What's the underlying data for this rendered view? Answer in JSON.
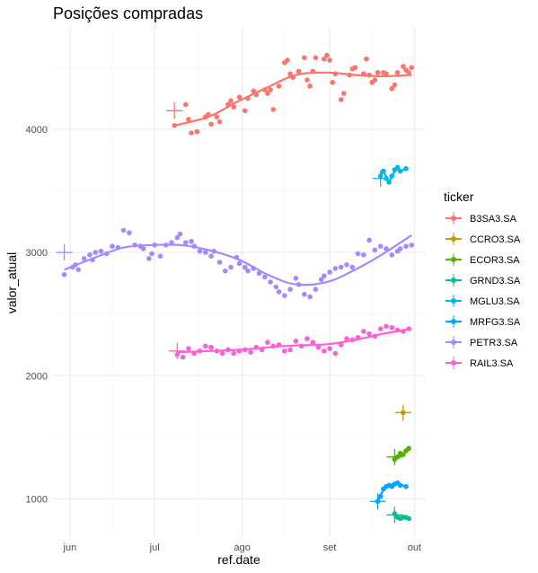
{
  "chart_data": {
    "type": "scatter",
    "title": "Posições compradas",
    "xlabel": "ref.date",
    "ylabel": "valor_atual",
    "x_ticks": [
      {
        "date": "2021-06-01",
        "label": "jun"
      },
      {
        "date": "2021-07-01",
        "label": "jul"
      },
      {
        "date": "2021-08-01",
        "label": "ago"
      },
      {
        "date": "2021-09-01",
        "label": "set"
      },
      {
        "date": "2021-10-01",
        "label": "out"
      }
    ],
    "y_ticks": [
      1000,
      2000,
      3000,
      4000
    ],
    "xlim": [
      "2021-05-26",
      "2021-10-05"
    ],
    "ylim": [
      690,
      4830
    ],
    "grid": true,
    "legend": {
      "title": "ticker",
      "placement": "right"
    },
    "series": [
      {
        "name": "B3SA3.SA",
        "color": "#F8766D",
        "entry": {
          "date": "2021-07-08",
          "value": 4150
        },
        "points": [
          [
            "2021-07-08",
            4030
          ],
          [
            "2021-07-12",
            4200
          ],
          [
            "2021-07-13",
            4080
          ],
          [
            "2021-07-14",
            3970
          ],
          [
            "2021-07-16",
            3980
          ],
          [
            "2021-07-19",
            4100
          ],
          [
            "2021-07-20",
            4120
          ],
          [
            "2021-07-21",
            4040
          ],
          [
            "2021-07-23",
            4100
          ],
          [
            "2021-07-24",
            4060
          ],
          [
            "2021-07-27",
            4200
          ],
          [
            "2021-07-28",
            4230
          ],
          [
            "2021-07-29",
            4180
          ],
          [
            "2021-07-31",
            4260
          ],
          [
            "2021-08-02",
            4150
          ],
          [
            "2021-08-03",
            4250
          ],
          [
            "2021-08-05",
            4310
          ],
          [
            "2021-08-06",
            4280
          ],
          [
            "2021-08-09",
            4320
          ],
          [
            "2021-08-10",
            4290
          ],
          [
            "2021-08-11",
            4320
          ],
          [
            "2021-08-12",
            4160
          ],
          [
            "2021-08-14",
            4350
          ],
          [
            "2021-08-16",
            4540
          ],
          [
            "2021-08-17",
            4560
          ],
          [
            "2021-08-18",
            4450
          ],
          [
            "2021-08-19",
            4420
          ],
          [
            "2021-08-21",
            4470
          ],
          [
            "2021-08-23",
            4580
          ],
          [
            "2021-08-24",
            4400
          ],
          [
            "2021-08-25",
            4350
          ],
          [
            "2021-08-26",
            4470
          ],
          [
            "2021-08-27",
            4580
          ],
          [
            "2021-08-30",
            4570
          ],
          [
            "2021-08-31",
            4600
          ],
          [
            "2021-09-01",
            4560
          ],
          [
            "2021-09-02",
            4380
          ],
          [
            "2021-09-03",
            4450
          ],
          [
            "2021-09-05",
            4240
          ],
          [
            "2021-09-06",
            4290
          ],
          [
            "2021-09-08",
            4440
          ],
          [
            "2021-09-09",
            4490
          ],
          [
            "2021-09-10",
            4500
          ],
          [
            "2021-09-13",
            4450
          ],
          [
            "2021-09-14",
            4570
          ],
          [
            "2021-09-15",
            4440
          ],
          [
            "2021-09-16",
            4380
          ],
          [
            "2021-09-17",
            4400
          ],
          [
            "2021-09-18",
            4460
          ],
          [
            "2021-09-20",
            4460
          ],
          [
            "2021-09-21",
            4450
          ],
          [
            "2021-09-23",
            4330
          ],
          [
            "2021-09-24",
            4360
          ],
          [
            "2021-09-25",
            4460
          ],
          [
            "2021-09-27",
            4510
          ],
          [
            "2021-09-28",
            4480
          ],
          [
            "2021-09-29",
            4460
          ],
          [
            "2021-09-30",
            4500
          ]
        ],
        "trend": [
          [
            "2021-07-08",
            4030
          ],
          [
            "2021-07-20",
            4100
          ],
          [
            "2021-07-30",
            4220
          ],
          [
            "2021-08-10",
            4340
          ],
          [
            "2021-08-20",
            4440
          ],
          [
            "2021-08-31",
            4460
          ],
          [
            "2021-09-10",
            4440
          ],
          [
            "2021-09-20",
            4430
          ],
          [
            "2021-09-30",
            4440
          ]
        ]
      },
      {
        "name": "CCRO3.SA",
        "color": "#C49A00",
        "entry": {
          "date": "2021-09-27",
          "value": 1700
        },
        "points": [
          [
            "2021-09-27",
            1700
          ]
        ],
        "trend": []
      },
      {
        "name": "ECOR3.SA",
        "color": "#53B400",
        "entry": {
          "date": "2021-09-24",
          "value": 1340
        },
        "points": [
          [
            "2021-09-24",
            1320
          ],
          [
            "2021-09-25",
            1340
          ],
          [
            "2021-09-26",
            1370
          ],
          [
            "2021-09-27",
            1360
          ],
          [
            "2021-09-28",
            1390
          ],
          [
            "2021-09-29",
            1410
          ]
        ],
        "trend": [
          [
            "2021-09-24",
            1320
          ],
          [
            "2021-09-26",
            1350
          ],
          [
            "2021-09-29",
            1400
          ]
        ]
      },
      {
        "name": "GRND3.SA",
        "color": "#00C094",
        "entry": {
          "date": "2021-09-24",
          "value": 870
        },
        "points": [
          [
            "2021-09-24",
            880
          ],
          [
            "2021-09-25",
            850
          ],
          [
            "2021-09-26",
            840
          ],
          [
            "2021-09-27",
            850
          ],
          [
            "2021-09-28",
            850
          ],
          [
            "2021-09-29",
            840
          ]
        ],
        "trend": [
          [
            "2021-09-24",
            870
          ],
          [
            "2021-09-26",
            850
          ],
          [
            "2021-09-29",
            845
          ]
        ]
      },
      {
        "name": "MGLU3.SA",
        "color": "#00B6EB",
        "entry": {
          "date": "2021-09-19",
          "value": 3600
        },
        "points": [
          [
            "2021-09-19",
            3620
          ],
          [
            "2021-09-20",
            3660
          ],
          [
            "2021-09-21",
            3600
          ],
          [
            "2021-09-22",
            3570
          ],
          [
            "2021-09-23",
            3620
          ],
          [
            "2021-09-24",
            3670
          ],
          [
            "2021-09-25",
            3690
          ],
          [
            "2021-09-26",
            3660
          ],
          [
            "2021-09-28",
            3680
          ]
        ],
        "trend": [
          [
            "2021-09-19",
            3610
          ],
          [
            "2021-09-20",
            3650
          ],
          [
            "2021-09-22",
            3580
          ],
          [
            "2021-09-23",
            3620
          ],
          [
            "2021-09-25",
            3680
          ],
          [
            "2021-09-26",
            3660
          ],
          [
            "2021-09-28",
            3680
          ]
        ]
      },
      {
        "name": "MRFG3.SA",
        "color": "#06A4FF",
        "entry": {
          "date": "2021-09-18",
          "value": 980
        },
        "points": [
          [
            "2021-09-18",
            980
          ],
          [
            "2021-09-19",
            1020
          ],
          [
            "2021-09-20",
            1080
          ],
          [
            "2021-09-21",
            1100
          ],
          [
            "2021-09-22",
            1110
          ],
          [
            "2021-09-23",
            1100
          ],
          [
            "2021-09-24",
            1120
          ],
          [
            "2021-09-25",
            1130
          ],
          [
            "2021-09-26",
            1110
          ],
          [
            "2021-09-28",
            1100
          ]
        ],
        "trend": [
          [
            "2021-09-18",
            980
          ],
          [
            "2021-09-20",
            1070
          ],
          [
            "2021-09-22",
            1110
          ],
          [
            "2021-09-25",
            1120
          ],
          [
            "2021-09-28",
            1100
          ]
        ]
      },
      {
        "name": "PETR3.SA",
        "color": "#A58AFF",
        "entry": {
          "date": "2021-05-30",
          "value": 3000
        },
        "points": [
          [
            "2021-05-30",
            2820
          ],
          [
            "2021-06-02",
            2880
          ],
          [
            "2021-06-03",
            2900
          ],
          [
            "2021-06-04",
            2860
          ],
          [
            "2021-06-06",
            2950
          ],
          [
            "2021-06-08",
            2980
          ],
          [
            "2021-06-09",
            2940
          ],
          [
            "2021-06-10",
            3000
          ],
          [
            "2021-06-12",
            3010
          ],
          [
            "2021-06-14",
            2990
          ],
          [
            "2021-06-16",
            3050
          ],
          [
            "2021-06-18",
            3040
          ],
          [
            "2021-06-20",
            3180
          ],
          [
            "2021-06-22",
            3160
          ],
          [
            "2021-06-24",
            3060
          ],
          [
            "2021-06-26",
            3050
          ],
          [
            "2021-06-27",
            3030
          ],
          [
            "2021-06-29",
            2950
          ],
          [
            "2021-06-30",
            2990
          ],
          [
            "2021-07-01",
            3060
          ],
          [
            "2021-07-03",
            2970
          ],
          [
            "2021-07-05",
            3060
          ],
          [
            "2021-07-07",
            3080
          ],
          [
            "2021-07-09",
            3120
          ],
          [
            "2021-07-10",
            3150
          ],
          [
            "2021-07-12",
            3080
          ],
          [
            "2021-07-14",
            3090
          ],
          [
            "2021-07-15",
            3050
          ],
          [
            "2021-07-17",
            3010
          ],
          [
            "2021-07-19",
            3000
          ],
          [
            "2021-07-21",
            2970
          ],
          [
            "2021-07-22",
            3010
          ],
          [
            "2021-07-24",
            2920
          ],
          [
            "2021-07-26",
            2850
          ],
          [
            "2021-07-28",
            2880
          ],
          [
            "2021-07-30",
            2960
          ],
          [
            "2021-07-31",
            2910
          ],
          [
            "2021-08-02",
            2880
          ],
          [
            "2021-08-03",
            2850
          ],
          [
            "2021-08-05",
            2870
          ],
          [
            "2021-08-07",
            2830
          ],
          [
            "2021-08-09",
            2800
          ],
          [
            "2021-08-11",
            2760
          ],
          [
            "2021-08-13",
            2720
          ],
          [
            "2021-08-14",
            2680
          ],
          [
            "2021-08-16",
            2650
          ],
          [
            "2021-08-18",
            2700
          ],
          [
            "2021-08-20",
            2790
          ],
          [
            "2021-08-21",
            2740
          ],
          [
            "2021-08-23",
            2660
          ],
          [
            "2021-08-25",
            2640
          ],
          [
            "2021-08-27",
            2700
          ],
          [
            "2021-08-29",
            2780
          ],
          [
            "2021-08-30",
            2810
          ],
          [
            "2021-09-01",
            2840
          ],
          [
            "2021-09-03",
            2870
          ],
          [
            "2021-09-05",
            2880
          ],
          [
            "2021-09-07",
            2900
          ],
          [
            "2021-09-09",
            2880
          ],
          [
            "2021-09-11",
            2990
          ],
          [
            "2021-09-13",
            2980
          ],
          [
            "2021-09-15",
            3100
          ],
          [
            "2021-09-17",
            3020
          ],
          [
            "2021-09-19",
            3050
          ],
          [
            "2021-09-21",
            3030
          ],
          [
            "2021-09-23",
            2980
          ],
          [
            "2021-09-25",
            3010
          ],
          [
            "2021-09-26",
            3030
          ],
          [
            "2021-09-28",
            3050
          ],
          [
            "2021-09-30",
            3060
          ]
        ],
        "trend": [
          [
            "2021-05-30",
            2860
          ],
          [
            "2021-06-10",
            2960
          ],
          [
            "2021-06-20",
            3040
          ],
          [
            "2021-06-30",
            3060
          ],
          [
            "2021-07-10",
            3060
          ],
          [
            "2021-07-20",
            3020
          ],
          [
            "2021-07-31",
            2940
          ],
          [
            "2021-08-10",
            2820
          ],
          [
            "2021-08-20",
            2740
          ],
          [
            "2021-08-31",
            2760
          ],
          [
            "2021-09-10",
            2860
          ],
          [
            "2021-09-20",
            2990
          ],
          [
            "2021-09-30",
            3140
          ]
        ]
      },
      {
        "name": "RAIL3.SA",
        "color": "#FB61D7",
        "entry": {
          "date": "2021-07-09",
          "value": 2200
        },
        "points": [
          [
            "2021-07-09",
            2170
          ],
          [
            "2021-07-11",
            2150
          ],
          [
            "2021-07-13",
            2220
          ],
          [
            "2021-07-15",
            2180
          ],
          [
            "2021-07-17",
            2200
          ],
          [
            "2021-07-19",
            2240
          ],
          [
            "2021-07-21",
            2230
          ],
          [
            "2021-07-23",
            2200
          ],
          [
            "2021-07-25",
            2180
          ],
          [
            "2021-07-27",
            2210
          ],
          [
            "2021-07-29",
            2180
          ],
          [
            "2021-07-31",
            2200
          ],
          [
            "2021-08-02",
            2210
          ],
          [
            "2021-08-04",
            2190
          ],
          [
            "2021-08-06",
            2230
          ],
          [
            "2021-08-08",
            2210
          ],
          [
            "2021-08-10",
            2270
          ],
          [
            "2021-08-12",
            2240
          ],
          [
            "2021-08-14",
            2250
          ],
          [
            "2021-08-16",
            2200
          ],
          [
            "2021-08-18",
            2210
          ],
          [
            "2021-08-20",
            2280
          ],
          [
            "2021-08-22",
            2240
          ],
          [
            "2021-08-24",
            2300
          ],
          [
            "2021-08-26",
            2270
          ],
          [
            "2021-08-28",
            2230
          ],
          [
            "2021-08-30",
            2200
          ],
          [
            "2021-09-01",
            2220
          ],
          [
            "2021-09-03",
            2180
          ],
          [
            "2021-09-05",
            2250
          ],
          [
            "2021-09-07",
            2300
          ],
          [
            "2021-09-09",
            2290
          ],
          [
            "2021-09-11",
            2310
          ],
          [
            "2021-09-13",
            2360
          ],
          [
            "2021-09-15",
            2340
          ],
          [
            "2021-09-17",
            2320
          ],
          [
            "2021-09-19",
            2380
          ],
          [
            "2021-09-21",
            2400
          ],
          [
            "2021-09-23",
            2390
          ],
          [
            "2021-09-25",
            2370
          ],
          [
            "2021-09-27",
            2360
          ],
          [
            "2021-09-29",
            2380
          ]
        ],
        "trend": [
          [
            "2021-07-09",
            2190
          ],
          [
            "2021-07-20",
            2200
          ],
          [
            "2021-07-31",
            2210
          ],
          [
            "2021-08-10",
            2230
          ],
          [
            "2021-08-20",
            2245
          ],
          [
            "2021-08-31",
            2255
          ],
          [
            "2021-09-10",
            2290
          ],
          [
            "2021-09-20",
            2340
          ],
          [
            "2021-09-30",
            2380
          ]
        ]
      }
    ]
  }
}
